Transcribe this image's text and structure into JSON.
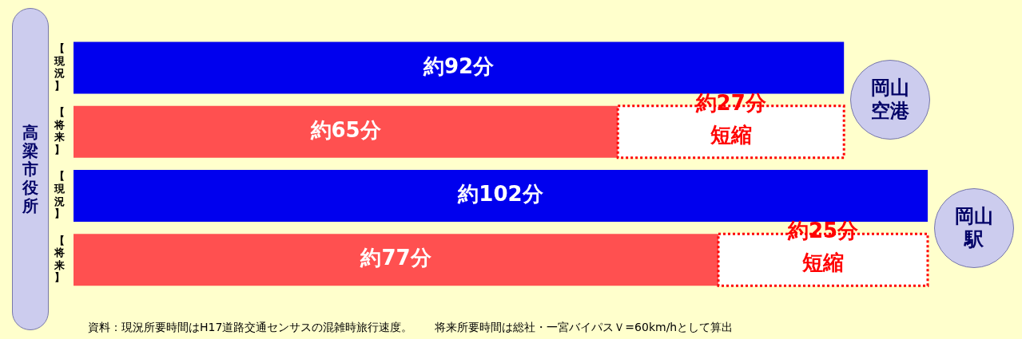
{
  "chart_data": {
    "type": "bar",
    "orientation": "horizontal",
    "stacked": true,
    "ylabel": "高梁市役所",
    "categories": [
      "【現況】",
      "【将来】",
      "【現況】",
      "【将来】"
    ],
    "series": [
      {
        "colors": [
          "#0000ee",
          "#ff5050",
          "#0000ee",
          "#ff5050"
        ],
        "values": [
          92,
          65,
          102,
          77
        ],
        "value_labels": [
          "約92分",
          "約65分",
          "約102分",
          "約77分"
        ]
      },
      {
        "color": "#ff0000",
        "values": [
          null,
          27,
          null,
          25
        ],
        "value_labels": [
          null,
          "約27分短縮",
          null,
          "約25分短縮"
        ]
      }
    ],
    "annotations": [
      "岡山空港",
      "岡山駅",
      "資料：現況所要時間はH17道路交通センサスの混雑時旅行速度。　　将来所要時間は総社・一宮バイパスＶ=60km/hとして算出"
    ],
    "legend": false
  }
}
